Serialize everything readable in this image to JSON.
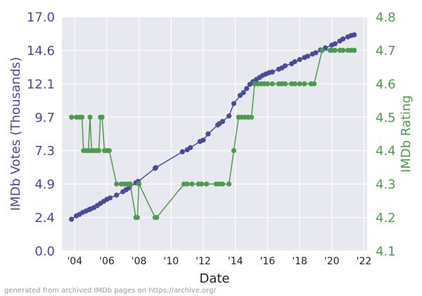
{
  "chart_data": {
    "type": "line",
    "xlabel": "Date",
    "ylabel_left": "IMDb Votes (Thousands)",
    "ylabel_right": "IMDb Rating",
    "x_ticks": [
      "'04",
      "'06",
      "'08",
      "'10",
      "'12",
      "'14",
      "'16",
      "'18",
      "'20",
      "'22"
    ],
    "x_tick_years": [
      2004,
      2006,
      2008,
      2010,
      2012,
      2014,
      2016,
      2018,
      2020,
      2022
    ],
    "xlim": [
      2003.2,
      2022.2
    ],
    "y_left_ticks": [
      "0.0",
      "2.4",
      "4.9",
      "7.3",
      "9.7",
      "12.1",
      "14.6",
      "17.0"
    ],
    "y_left_lim": [
      0,
      17.0
    ],
    "y_right_ticks": [
      "4.1",
      "4.2",
      "4.3",
      "4.4",
      "4.5",
      "4.6",
      "4.7",
      "4.8"
    ],
    "y_right_lim": [
      4.1,
      4.8
    ],
    "grid": true,
    "colors": {
      "votes": "#4a4a9a",
      "rating": "#4e9a4e",
      "background": "#e8e8f0",
      "grid": "#ffffff"
    },
    "series": [
      {
        "axis": "left",
        "points": [
          [
            2003.8,
            2.3
          ],
          [
            2004.1,
            2.55
          ],
          [
            2004.3,
            2.65
          ],
          [
            2004.5,
            2.8
          ],
          [
            2004.7,
            2.9
          ],
          [
            2004.9,
            3.0
          ],
          [
            2005.0,
            3.05
          ],
          [
            2005.2,
            3.15
          ],
          [
            2005.4,
            3.3
          ],
          [
            2005.6,
            3.45
          ],
          [
            2005.8,
            3.6
          ],
          [
            2006.0,
            3.75
          ],
          [
            2006.2,
            3.85
          ],
          [
            2006.6,
            4.05
          ],
          [
            2007.0,
            4.3
          ],
          [
            2007.2,
            4.45
          ],
          [
            2007.4,
            4.6
          ],
          [
            2007.8,
            4.95
          ],
          [
            2007.95,
            5.05
          ],
          [
            2009.0,
            6.0
          ],
          [
            2009.05,
            6.05
          ],
          [
            2010.7,
            7.2
          ],
          [
            2011.0,
            7.35
          ],
          [
            2011.2,
            7.5
          ],
          [
            2011.8,
            7.95
          ],
          [
            2012.0,
            8.05
          ],
          [
            2012.3,
            8.5
          ],
          [
            2012.9,
            9.15
          ],
          [
            2013.0,
            9.25
          ],
          [
            2013.2,
            9.4
          ],
          [
            2013.6,
            9.8
          ],
          [
            2013.9,
            10.7
          ],
          [
            2014.3,
            11.3
          ],
          [
            2014.5,
            11.5
          ],
          [
            2014.7,
            11.8
          ],
          [
            2014.9,
            12.1
          ],
          [
            2015.1,
            12.3
          ],
          [
            2015.3,
            12.45
          ],
          [
            2015.5,
            12.6
          ],
          [
            2015.7,
            12.75
          ],
          [
            2015.9,
            12.85
          ],
          [
            2016.1,
            12.95
          ],
          [
            2016.3,
            13.0
          ],
          [
            2016.7,
            13.2
          ],
          [
            2016.9,
            13.3
          ],
          [
            2017.1,
            13.45
          ],
          [
            2017.5,
            13.6
          ],
          [
            2017.7,
            13.75
          ],
          [
            2018.0,
            13.9
          ],
          [
            2018.3,
            14.05
          ],
          [
            2018.5,
            14.15
          ],
          [
            2018.8,
            14.3
          ],
          [
            2019.0,
            14.4
          ],
          [
            2019.3,
            14.6
          ],
          [
            2019.6,
            14.75
          ],
          [
            2020.0,
            14.95
          ],
          [
            2020.2,
            15.05
          ],
          [
            2020.5,
            15.25
          ],
          [
            2020.7,
            15.4
          ],
          [
            2021.0,
            15.55
          ],
          [
            2021.2,
            15.65
          ],
          [
            2021.4,
            15.7
          ]
        ]
      },
      {
        "axis": "right",
        "points": [
          [
            2003.8,
            4.5
          ],
          [
            2004.1,
            4.5
          ],
          [
            2004.3,
            4.5
          ],
          [
            2004.45,
            4.5
          ],
          [
            2004.55,
            4.4
          ],
          [
            2004.7,
            4.4
          ],
          [
            2004.85,
            4.4
          ],
          [
            2004.95,
            4.5
          ],
          [
            2005.05,
            4.4
          ],
          [
            2005.2,
            4.4
          ],
          [
            2005.35,
            4.4
          ],
          [
            2005.5,
            4.4
          ],
          [
            2005.6,
            4.5
          ],
          [
            2005.7,
            4.5
          ],
          [
            2005.85,
            4.4
          ],
          [
            2006.0,
            4.4
          ],
          [
            2006.15,
            4.4
          ],
          [
            2006.6,
            4.3
          ],
          [
            2006.9,
            4.3
          ],
          [
            2007.1,
            4.3
          ],
          [
            2007.3,
            4.3
          ],
          [
            2007.45,
            4.3
          ],
          [
            2007.8,
            4.2
          ],
          [
            2007.9,
            4.2
          ],
          [
            2008.0,
            4.3
          ],
          [
            2009.0,
            4.2
          ],
          [
            2009.1,
            4.2
          ],
          [
            2010.8,
            4.3
          ],
          [
            2011.0,
            4.3
          ],
          [
            2011.3,
            4.3
          ],
          [
            2011.7,
            4.3
          ],
          [
            2011.9,
            4.3
          ],
          [
            2012.2,
            4.3
          ],
          [
            2012.8,
            4.3
          ],
          [
            2013.0,
            4.3
          ],
          [
            2013.2,
            4.3
          ],
          [
            2013.6,
            4.3
          ],
          [
            2013.9,
            4.4
          ],
          [
            2014.2,
            4.5
          ],
          [
            2014.4,
            4.5
          ],
          [
            2014.6,
            4.5
          ],
          [
            2014.8,
            4.5
          ],
          [
            2015.0,
            4.5
          ],
          [
            2015.2,
            4.6
          ],
          [
            2015.4,
            4.6
          ],
          [
            2015.6,
            4.6
          ],
          [
            2015.8,
            4.6
          ],
          [
            2016.0,
            4.6
          ],
          [
            2016.3,
            4.6
          ],
          [
            2016.7,
            4.6
          ],
          [
            2016.9,
            4.6
          ],
          [
            2017.1,
            4.6
          ],
          [
            2017.5,
            4.6
          ],
          [
            2017.7,
            4.6
          ],
          [
            2018.0,
            4.6
          ],
          [
            2018.3,
            4.6
          ],
          [
            2018.7,
            4.6
          ],
          [
            2018.9,
            4.6
          ],
          [
            2019.4,
            4.7
          ],
          [
            2019.9,
            4.7
          ],
          [
            2020.0,
            4.7
          ],
          [
            2020.2,
            4.7
          ],
          [
            2020.5,
            4.7
          ],
          [
            2020.7,
            4.7
          ],
          [
            2021.0,
            4.7
          ],
          [
            2021.2,
            4.7
          ],
          [
            2021.4,
            4.7
          ]
        ]
      }
    ]
  },
  "footer": "generated from archived IMDb pages on https://archive.org/"
}
